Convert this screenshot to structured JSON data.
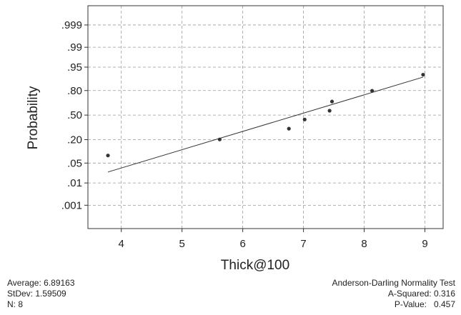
{
  "chart_data": {
    "type": "scatter",
    "subtype": "normal-probability-plot",
    "xlabel": "Thick@100",
    "ylabel": "Probability",
    "xlim": [
      3.45,
      9.3
    ],
    "x_ticks": [
      4,
      5,
      6,
      7,
      8,
      9
    ],
    "y_ticks": [
      {
        "label": ".001",
        "p": 0.001
      },
      {
        "label": ".01",
        "p": 0.01
      },
      {
        "label": ".05",
        "p": 0.05
      },
      {
        "label": ".20",
        "p": 0.2
      },
      {
        "label": ".50",
        "p": 0.5
      },
      {
        "label": ".80",
        "p": 0.8
      },
      {
        "label": ".95",
        "p": 0.95
      },
      {
        "label": ".99",
        "p": 0.99
      },
      {
        "label": ".999",
        "p": 0.999
      }
    ],
    "grid": true,
    "points": [
      {
        "x": 3.78,
        "p": 0.083
      },
      {
        "x": 5.62,
        "p": 0.202
      },
      {
        "x": 6.76,
        "p": 0.321
      },
      {
        "x": 7.02,
        "p": 0.44
      },
      {
        "x": 7.43,
        "p": 0.56
      },
      {
        "x": 7.47,
        "p": 0.679
      },
      {
        "x": 8.13,
        "p": 0.798
      },
      {
        "x": 8.97,
        "p": 0.917
      }
    ],
    "fit_line": {
      "mean": 6.89163,
      "stdev": 1.59509,
      "x_range": [
        3.78,
        8.97
      ]
    }
  },
  "stats_left": {
    "average": "Average: 6.89163",
    "stdev": "StDev: 1.59509",
    "n": "N: 8"
  },
  "stats_right": {
    "title": "Anderson-Darling Normality Test",
    "a_squared": "A-Squared: 0.316",
    "p_value": "P-Value:   0.457"
  }
}
